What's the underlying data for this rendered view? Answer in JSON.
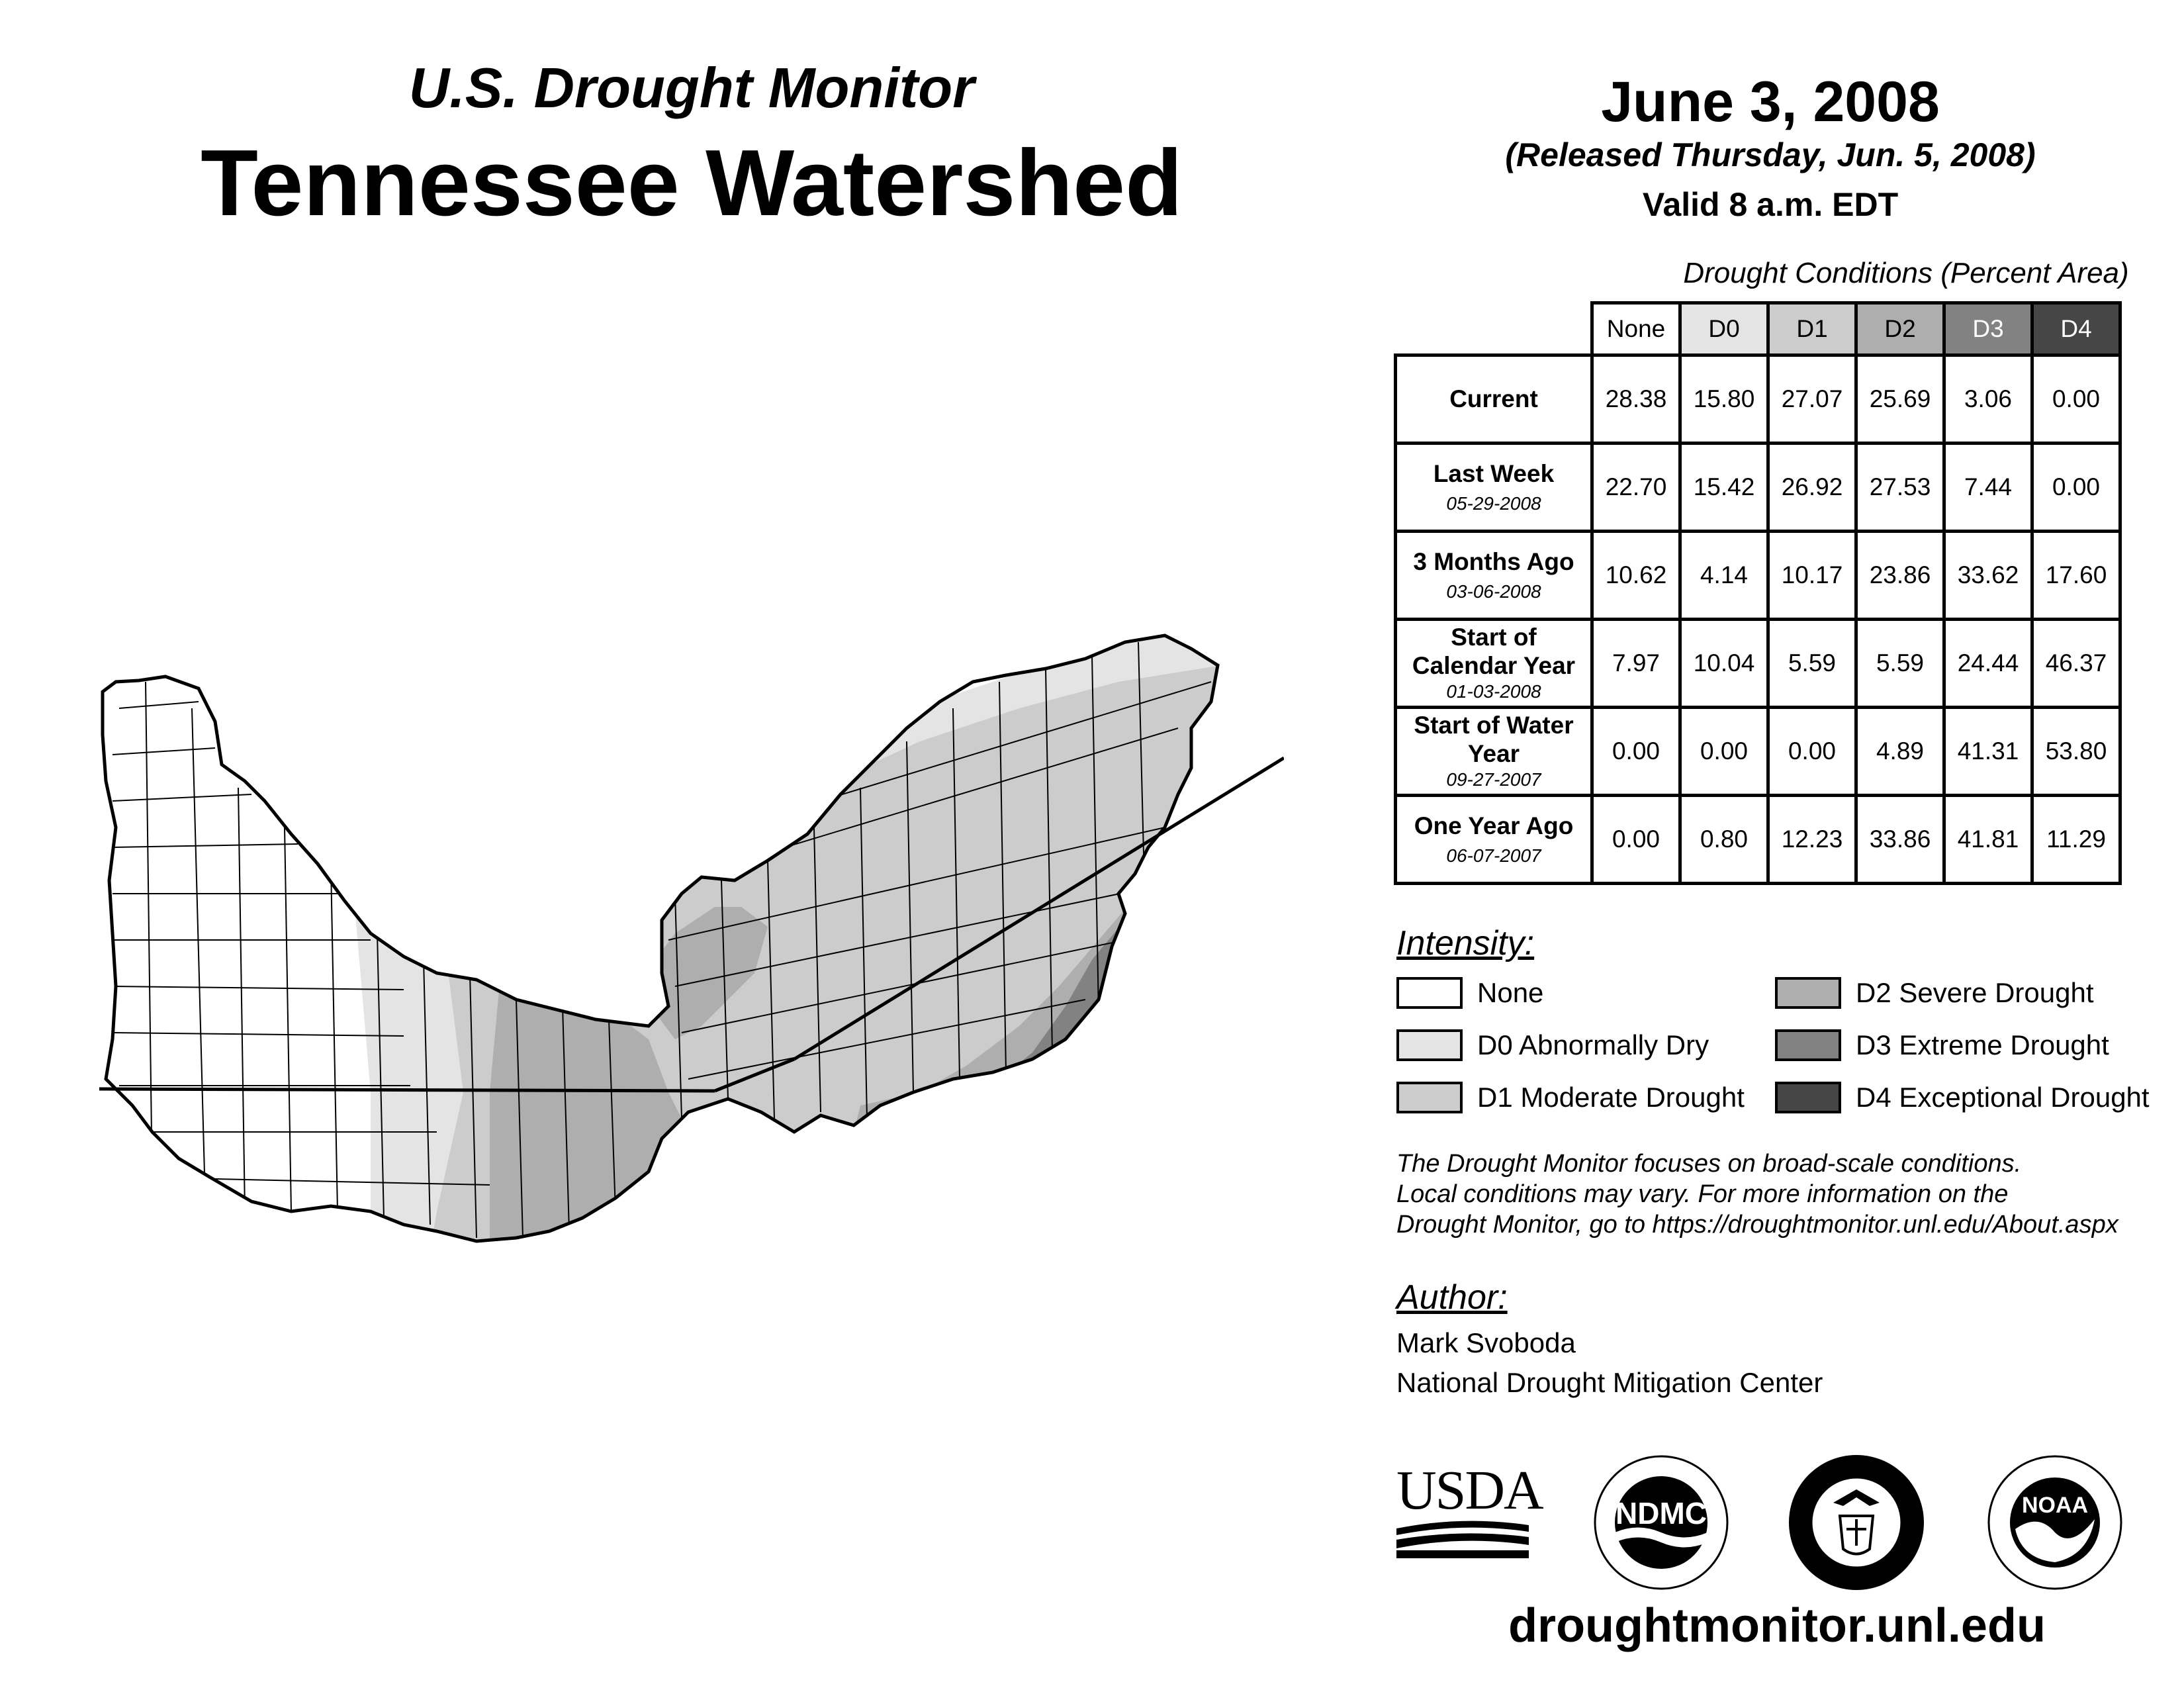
{
  "header": {
    "subtitle": "U.S. Drought Monitor",
    "title": "Tennessee Watershed",
    "date": "June 3, 2008",
    "released": "(Released Thursday, Jun. 5, 2008)",
    "valid": "Valid 8 a.m. EDT"
  },
  "table": {
    "caption": "Drought Conditions (Percent Area)",
    "columns": [
      "None",
      "D0",
      "D1",
      "D2",
      "D3",
      "D4"
    ],
    "rows": [
      {
        "label": "Current",
        "date": "",
        "values": [
          "28.38",
          "15.80",
          "27.07",
          "25.69",
          "3.06",
          "0.00"
        ]
      },
      {
        "label": "Last Week",
        "date": "05-29-2008",
        "values": [
          "22.70",
          "15.42",
          "26.92",
          "27.53",
          "7.44",
          "0.00"
        ]
      },
      {
        "label": "3 Months Ago",
        "date": "03-06-2008",
        "values": [
          "10.62",
          "4.14",
          "10.17",
          "23.86",
          "33.62",
          "17.60"
        ]
      },
      {
        "label": "Start of Calendar Year",
        "date": "01-03-2008",
        "values": [
          "7.97",
          "10.04",
          "5.59",
          "5.59",
          "24.44",
          "46.37"
        ]
      },
      {
        "label": "Start of Water Year",
        "date": "09-27-2007",
        "values": [
          "0.00",
          "0.00",
          "0.00",
          "4.89",
          "41.31",
          "53.80"
        ]
      },
      {
        "label": "One Year Ago",
        "date": "06-07-2007",
        "values": [
          "0.00",
          "0.80",
          "12.23",
          "33.86",
          "41.81",
          "11.29"
        ]
      }
    ]
  },
  "legend": {
    "heading": "Intensity:",
    "items": [
      {
        "label": "None",
        "color": "#ffffff"
      },
      {
        "label": "D0 Abnormally Dry",
        "color": "#e4e4e4"
      },
      {
        "label": "D1 Moderate Drought",
        "color": "#cccccc"
      },
      {
        "label": "D2 Severe Drought",
        "color": "#aeaeae"
      },
      {
        "label": "D3 Extreme Drought",
        "color": "#828282"
      },
      {
        "label": "D4 Exceptional Drought",
        "color": "#464646"
      }
    ]
  },
  "column_colors": [
    "#ffffff",
    "#e4e4e4",
    "#cccccc",
    "#aeaeae",
    "#828282",
    "#464646"
  ],
  "note": {
    "line1": "The Drought Monitor focuses on broad-scale conditions.",
    "line2": "Local conditions may vary. For more information on the",
    "line3": "Drought Monitor, go to https://droughtmonitor.unl.edu/About.aspx"
  },
  "author": {
    "heading": "Author:",
    "name": "Mark Svoboda",
    "org": "National Drought Mitigation Center"
  },
  "logos": {
    "usda": "USDA",
    "ndmc": "NDMC",
    "noaa": "NOAA"
  },
  "footer_url": "droughtmonitor.unl.edu"
}
